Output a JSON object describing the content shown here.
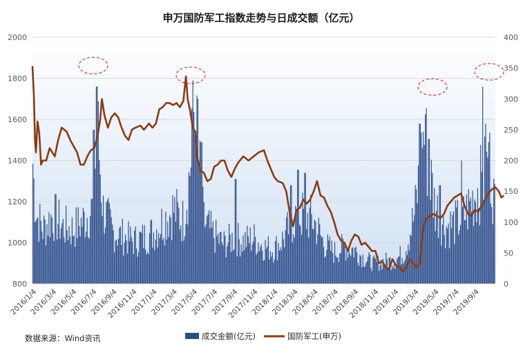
{
  "chart_data": {
    "type": "bar+line",
    "title": "申万国防军工指数走势与日成交额（亿元）",
    "source": "数据来源：Wind资讯",
    "y_left": {
      "min": 800,
      "max": 2000,
      "ticks": [
        800,
        1000,
        1200,
        1400,
        1600,
        1800,
        2000
      ]
    },
    "y_right": {
      "min": 0,
      "max": 400,
      "ticks": [
        0,
        50,
        100,
        150,
        200,
        250,
        300,
        350,
        400
      ]
    },
    "x_labels": [
      "2016/1/4",
      "2016/3/4",
      "2016/5/4",
      "2016/7/4",
      "2016/9/4",
      "2016/11/4",
      "2017/1/4",
      "2017/3/4",
      "2017/5/4",
      "2017/7/4",
      "2017/9/4",
      "2017/11/4",
      "2018/1/4",
      "2018/3/4",
      "2018/5/4",
      "2018/7/4",
      "2018/9/4",
      "2018/11/4",
      "2019/1/4",
      "2019/3/4",
      "2019/5/4",
      "2019/7/4",
      "2019/9/4"
    ],
    "grid": true,
    "legend": "bottom",
    "series": [
      {
        "name": "成交金额(亿元)",
        "type": "bar",
        "axis": "right",
        "color": "#2e4c8a",
        "anchors": [
          [
            0,
            195
          ],
          [
            0.2,
            120
          ],
          [
            0.5,
            95
          ],
          [
            1,
            120
          ],
          [
            1.5,
            100
          ],
          [
            2,
            95
          ],
          [
            2.5,
            110
          ],
          [
            3,
            135
          ],
          [
            3.2,
            280
          ],
          [
            3.5,
            130
          ],
          [
            4,
            90
          ],
          [
            5,
            75
          ],
          [
            5.5,
            80
          ],
          [
            6,
            90
          ],
          [
            6.5,
            110
          ],
          [
            7,
            130
          ],
          [
            7.5,
            110
          ],
          [
            7.8,
            190
          ],
          [
            8,
            300
          ],
          [
            8.2,
            240
          ],
          [
            8.5,
            110
          ],
          [
            9,
            85
          ],
          [
            9.5,
            70
          ],
          [
            10,
            80
          ],
          [
            10.5,
            75
          ],
          [
            11,
            80
          ],
          [
            11.5,
            65
          ],
          [
            12,
            60
          ],
          [
            12.5,
            80
          ],
          [
            13,
            115
          ],
          [
            13.5,
            120
          ],
          [
            14,
            110
          ],
          [
            14.5,
            70
          ],
          [
            15,
            55
          ],
          [
            15.5,
            65
          ],
          [
            16,
            60
          ],
          [
            16.5,
            45
          ],
          [
            17,
            35
          ],
          [
            17.5,
            40
          ],
          [
            18,
            40
          ],
          [
            18.5,
            55
          ],
          [
            19,
            120
          ],
          [
            19.5,
            260
          ],
          [
            20,
            140
          ],
          [
            20.5,
            100
          ],
          [
            21,
            105
          ],
          [
            21.5,
            120
          ],
          [
            22,
            155
          ],
          [
            22.8,
            210
          ],
          [
            23,
            135
          ]
        ],
        "spikes": [
          [
            0,
            195
          ],
          [
            3.05,
            250
          ],
          [
            3.2,
            320
          ],
          [
            7.95,
            285
          ],
          [
            8.1,
            235
          ],
          [
            8.2,
            300
          ],
          [
            8.4,
            230
          ],
          [
            10.1,
            170
          ],
          [
            12.85,
            160
          ],
          [
            13.2,
            185
          ],
          [
            13.55,
            180
          ],
          [
            19.25,
            260
          ],
          [
            19.4,
            220
          ],
          [
            19.55,
            275
          ],
          [
            19.7,
            235
          ],
          [
            19.85,
            180
          ],
          [
            20.25,
            160
          ],
          [
            21.35,
            200
          ],
          [
            22.4,
            320
          ],
          [
            22.55,
            260
          ],
          [
            22.7,
            230
          ],
          [
            22.75,
            245
          ]
        ]
      },
      {
        "name": "国防军工(申万)",
        "type": "line",
        "axis": "left",
        "color": "#8b3a10",
        "anchors": [
          [
            0,
            1860
          ],
          [
            0.02,
            1820
          ],
          [
            0.08,
            1720
          ],
          [
            0.15,
            1500
          ],
          [
            0.2,
            1440
          ],
          [
            0.3,
            1590
          ],
          [
            0.4,
            1530
          ],
          [
            0.5,
            1380
          ],
          [
            0.6,
            1400
          ],
          [
            0.8,
            1400
          ],
          [
            1,
            1460
          ],
          [
            1.3,
            1420
          ],
          [
            1.5,
            1500
          ],
          [
            1.7,
            1560
          ],
          [
            2,
            1540
          ],
          [
            2.2,
            1500
          ],
          [
            2.4,
            1470
          ],
          [
            2.6,
            1440
          ],
          [
            2.8,
            1380
          ],
          [
            3,
            1380
          ],
          [
            3.2,
            1420
          ],
          [
            3.4,
            1450
          ],
          [
            3.6,
            1460
          ],
          [
            3.8,
            1520
          ],
          [
            3.95,
            1600
          ],
          [
            4.05,
            1700
          ],
          [
            4.2,
            1620
          ],
          [
            4.4,
            1560
          ],
          [
            4.6,
            1610
          ],
          [
            4.8,
            1630
          ],
          [
            5,
            1610
          ],
          [
            5.2,
            1560
          ],
          [
            5.4,
            1520
          ],
          [
            5.6,
            1500
          ],
          [
            5.8,
            1550
          ],
          [
            6,
            1560
          ],
          [
            6.3,
            1570
          ],
          [
            6.5,
            1550
          ],
          [
            6.8,
            1580
          ],
          [
            7,
            1560
          ],
          [
            7.2,
            1580
          ],
          [
            7.4,
            1650
          ],
          [
            7.6,
            1660
          ],
          [
            7.8,
            1680
          ],
          [
            8,
            1680
          ],
          [
            8.2,
            1670
          ],
          [
            8.4,
            1680
          ],
          [
            8.6,
            1660
          ],
          [
            8.8,
            1690
          ],
          [
            8.95,
            1810
          ],
          [
            9.05,
            1700
          ],
          [
            9.2,
            1640
          ],
          [
            9.35,
            1560
          ],
          [
            9.5,
            1540
          ],
          [
            9.6,
            1420
          ],
          [
            9.8,
            1350
          ],
          [
            10,
            1340
          ],
          [
            10.2,
            1300
          ],
          [
            10.4,
            1310
          ],
          [
            10.6,
            1370
          ],
          [
            10.8,
            1380
          ],
          [
            11,
            1400
          ],
          [
            11.2,
            1400
          ],
          [
            11.4,
            1350
          ],
          [
            11.6,
            1320
          ],
          [
            11.8,
            1360
          ],
          [
            12,
            1390
          ],
          [
            12.3,
            1420
          ],
          [
            12.6,
            1400
          ],
          [
            12.9,
            1420
          ],
          [
            13.2,
            1440
          ],
          [
            13.5,
            1450
          ],
          [
            13.7,
            1400
          ],
          [
            13.9,
            1360
          ],
          [
            14.1,
            1320
          ],
          [
            14.3,
            1300
          ],
          [
            14.6,
            1290
          ],
          [
            14.8,
            1250
          ],
          [
            15,
            1150
          ],
          [
            15.2,
            1080
          ],
          [
            15.4,
            1160
          ],
          [
            15.6,
            1170
          ],
          [
            15.8,
            1210
          ],
          [
            16,
            1190
          ],
          [
            16.2,
            1210
          ],
          [
            16.4,
            1250
          ],
          [
            16.6,
            1300
          ],
          [
            16.8,
            1230
          ],
          [
            17,
            1220
          ],
          [
            17.2,
            1180
          ],
          [
            17.4,
            1150
          ],
          [
            17.6,
            1100
          ],
          [
            17.8,
            1040
          ],
          [
            18,
            1010
          ],
          [
            18.2,
            1000
          ],
          [
            18.4,
            960
          ],
          [
            18.6,
            1010
          ],
          [
            18.8,
            1040
          ],
          [
            19,
            1030
          ],
          [
            19.2,
            990
          ],
          [
            19.4,
            1000
          ],
          [
            19.6,
            980
          ],
          [
            19.8,
            960
          ],
          [
            20,
            960
          ],
          [
            20.2,
            900
          ],
          [
            20.4,
            910
          ],
          [
            20.6,
            880
          ],
          [
            20.8,
            870
          ],
          [
            21,
            920
          ],
          [
            21.2,
            890
          ],
          [
            21.4,
            880
          ],
          [
            21.6,
            860
          ],
          [
            21.8,
            880
          ],
          [
            22,
            920
          ],
          [
            22.2,
            900
          ],
          [
            22.4,
            880
          ],
          [
            22.6,
            900
          ],
          [
            22.8,
            1080
          ],
          [
            23,
            1120
          ],
          [
            23.2,
            1130
          ],
          [
            23.4,
            1140
          ],
          [
            23.6,
            1130
          ],
          [
            23.8,
            1120
          ],
          [
            24,
            1140
          ],
          [
            24.2,
            1180
          ],
          [
            24.4,
            1200
          ],
          [
            24.6,
            1220
          ],
          [
            24.8,
            1230
          ],
          [
            25,
            1240
          ],
          [
            25.2,
            1180
          ],
          [
            25.4,
            1140
          ],
          [
            25.6,
            1130
          ],
          [
            25.8,
            1160
          ],
          [
            26,
            1150
          ],
          [
            26.2,
            1180
          ],
          [
            26.4,
            1210
          ],
          [
            26.6,
            1240
          ],
          [
            26.8,
            1260
          ],
          [
            27,
            1270
          ],
          [
            27.2,
            1250
          ],
          [
            27.35,
            1220
          ],
          [
            27.5,
            1230
          ]
        ],
        "anchor_scale": 0.8518518518518519
      }
    ]
  },
  "legend_items": [
    "成交金额(亿元)",
    "国防军工(申万)"
  ]
}
